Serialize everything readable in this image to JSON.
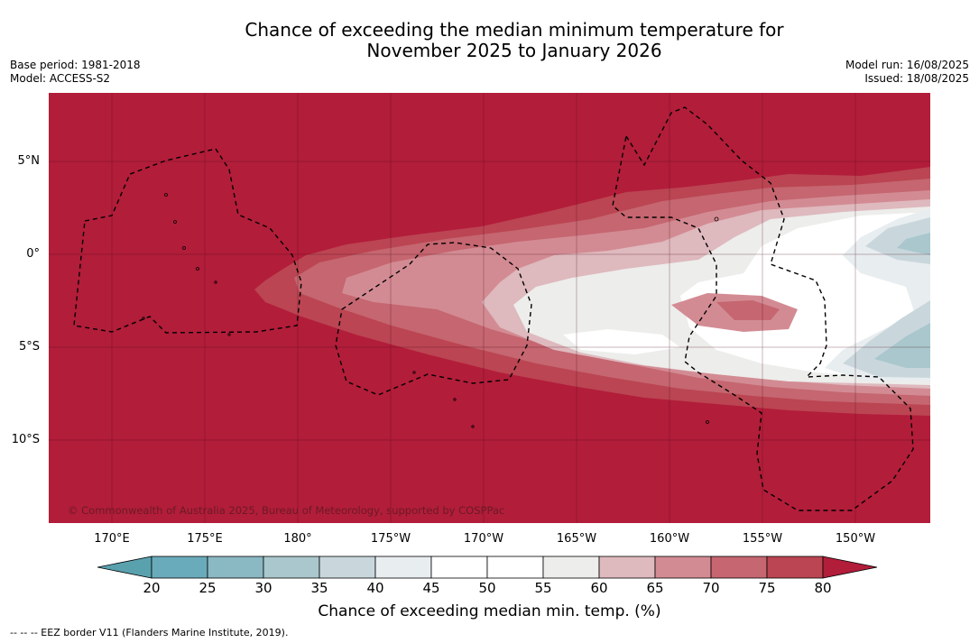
{
  "title_line1": "Chance of exceeding the median minimum temperature for",
  "title_line2": "November 2025 to January 2026",
  "meta_left": {
    "base_period": "Base period: 1981-2018",
    "model": "Model: ACCESS-S2"
  },
  "meta_right": {
    "model_run": "Model run: 16/08/2025",
    "issued": "Issued: 18/08/2025"
  },
  "lat_labels": [
    "5°N",
    "0°",
    "5°S",
    "10°S"
  ],
  "lon_labels": [
    "170°E",
    "175°E",
    "180°",
    "175°W",
    "170°W",
    "165°W",
    "160°W",
    "155°W",
    "150°W"
  ],
  "copyright": "© Commonwealth of Australia 2025, Bureau of Meteorology, supported by COSPPac",
  "colorbar": {
    "ticks": [
      "20",
      "25",
      "30",
      "35",
      "40",
      "45",
      "50",
      "55",
      "60",
      "65",
      "70",
      "75",
      "80"
    ],
    "colors": [
      "#6aabbb",
      "#8ab8c3",
      "#a9c7cd",
      "#c9d7dc",
      "#e8edf0",
      "#ffffff",
      "#ffffff",
      "#ededeb",
      "#deb9be",
      "#d38b93",
      "#c56670",
      "#bb4552"
    ],
    "under_color": "#5aa1ae",
    "over_color": "#b21d3a",
    "title": "Chance of exceeding median min. temp. (%)"
  },
  "footer": "--  --  -- EEZ border V11 (Flanders Marine Institute, 2019)."
}
